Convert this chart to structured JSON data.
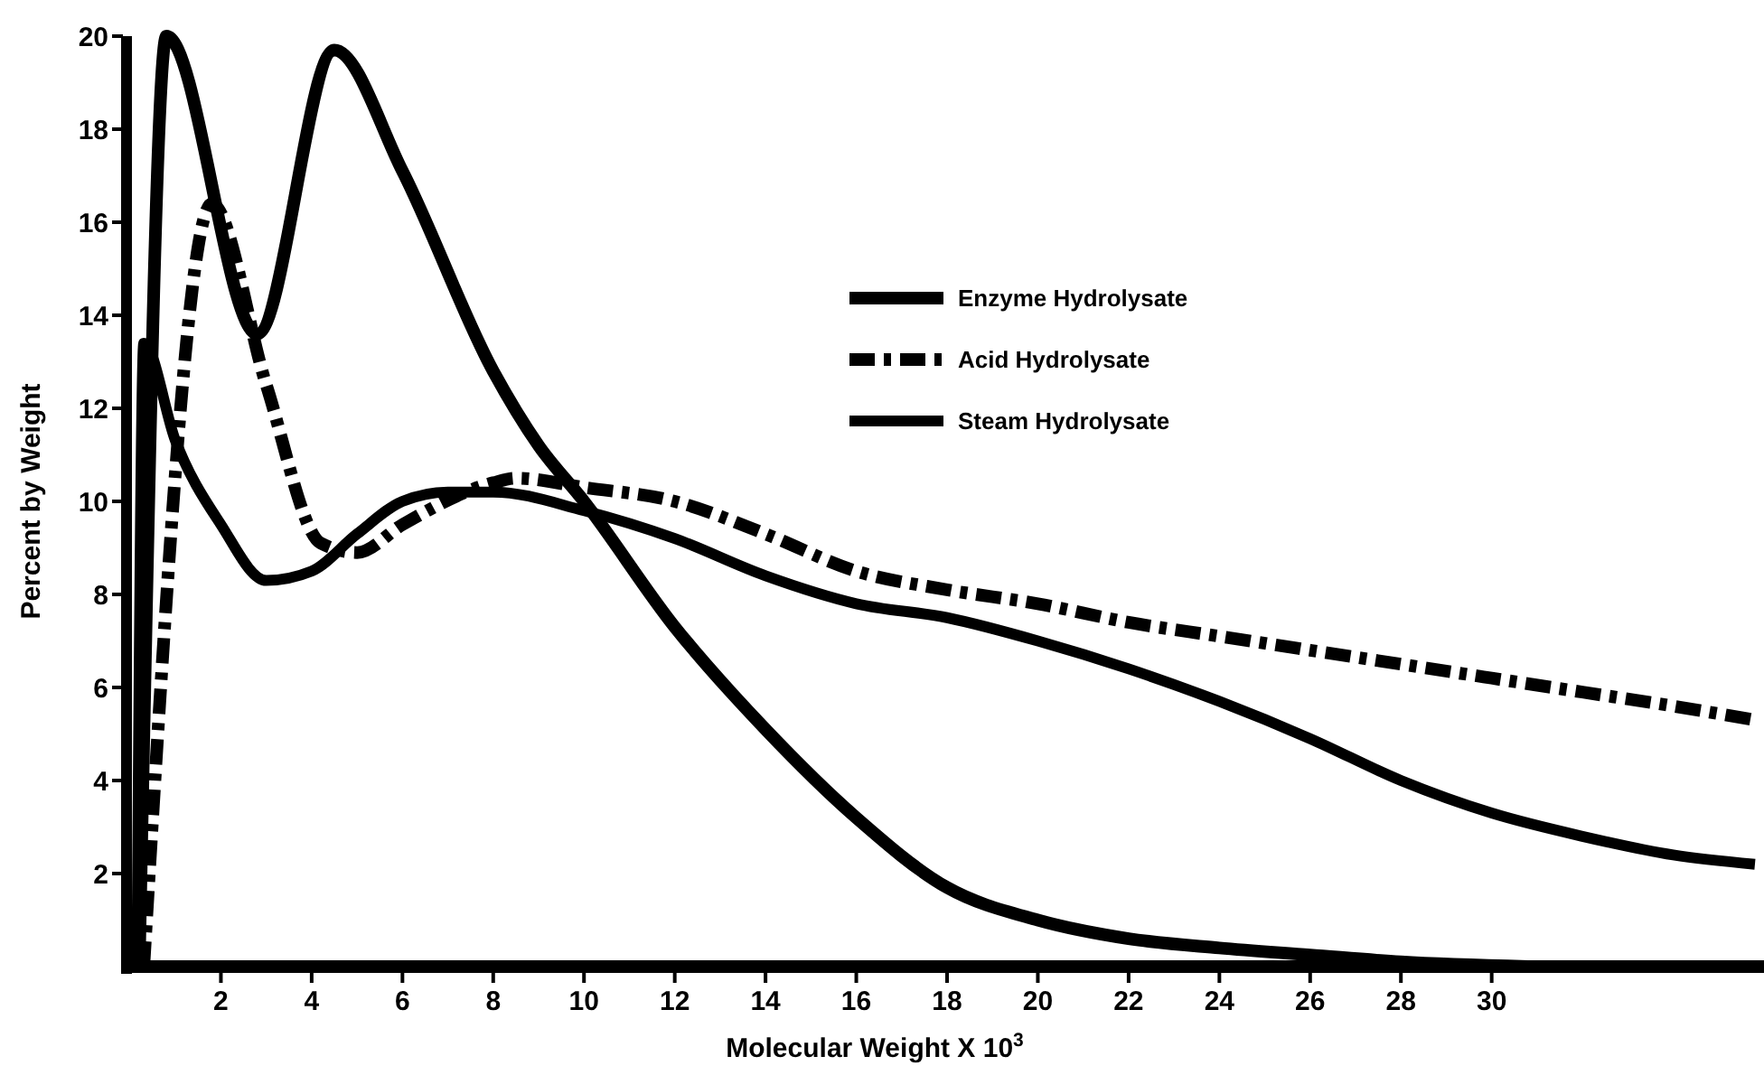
{
  "chart_data": {
    "type": "line",
    "xlabel": "Molecular Weight  X 10$^{3}$",
    "ylabel": "Percent by Weight",
    "xlim": [
      0,
      36
    ],
    "ylim": [
      0,
      20
    ],
    "xticks": [
      2,
      4,
      6,
      8,
      10,
      12,
      14,
      16,
      18,
      20,
      22,
      24,
      26,
      28,
      30
    ],
    "yticks": [
      2,
      4,
      6,
      8,
      10,
      12,
      14,
      16,
      18,
      20
    ],
    "grid": false,
    "legend": "top right",
    "marker": "none",
    "series": [
      {
        "name": "Enzyme Hydrolysate",
        "color": "#000000",
        "line_style": "solid",
        "x": [
          0.2,
          0.8,
          2.8,
          4.5,
          6,
          8,
          9,
          10,
          12,
          14,
          16,
          18,
          20,
          22,
          24,
          26,
          28,
          30.8
        ],
        "values": [
          0,
          20,
          13.6,
          19.7,
          17.1,
          12.8,
          11.2,
          10,
          7.3,
          5.1,
          3.2,
          1.7,
          1.0,
          0.6,
          0.4,
          0.25,
          0.1,
          0
        ]
      },
      {
        "name": "Acid Hydrolysate",
        "color": "#000000",
        "line_style": "dashed",
        "x": [
          0.3,
          1.8,
          3,
          4.2,
          5,
          6,
          8,
          8.5,
          10,
          12,
          14,
          16,
          18,
          20,
          22,
          24,
          26,
          28,
          30,
          32,
          34,
          35.8
        ],
        "values": [
          0,
          16.4,
          12.5,
          9.1,
          8.9,
          9.5,
          10.4,
          10.5,
          10.3,
          10,
          9.3,
          8.5,
          8.1,
          7.8,
          7.4,
          7.1,
          6.8,
          6.5,
          6.2,
          5.9,
          5.6,
          5.3
        ]
      },
      {
        "name": "Steam Hydrolysate",
        "color": "#000000",
        "line_style": "solid",
        "x": [
          0.15,
          0.3,
          1,
          2,
          3,
          4,
          5,
          6,
          7,
          8,
          10,
          12,
          14,
          16,
          18,
          20,
          22,
          24,
          26,
          28,
          30,
          32,
          34,
          35.8
        ],
        "values": [
          0,
          13.4,
          11.3,
          9.5,
          8.3,
          8.5,
          9.3,
          10,
          10.2,
          10.2,
          9.8,
          9.2,
          8.4,
          7.8,
          7.5,
          7.0,
          6.4,
          5.7,
          4.9,
          4.0,
          3.3,
          2.8,
          2.4,
          2.2
        ]
      }
    ]
  }
}
